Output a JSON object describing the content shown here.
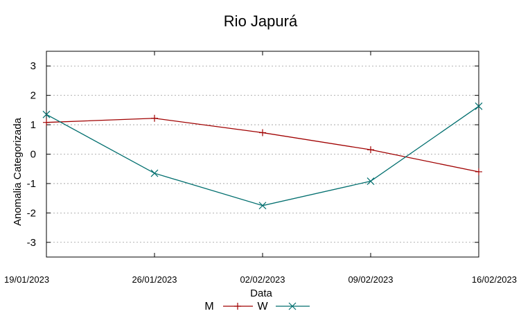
{
  "chart_data": {
    "type": "line",
    "title": "Rio Japurá",
    "xlabel": "Data",
    "ylabel": "Anomalia Categorizada",
    "categories": [
      "19/01/2023",
      "26/01/2023",
      "02/02/2023",
      "09/02/2023",
      "16/02/2023"
    ],
    "ylim": [
      -3.5,
      3.5
    ],
    "yticks": [
      "3",
      "2",
      "1",
      "0",
      "-1",
      "-2",
      "-3"
    ],
    "ytick_values": [
      3,
      2,
      1,
      0,
      -1,
      -2,
      -3
    ],
    "grid": true,
    "legend_position": "bottom-center",
    "series": [
      {
        "name": "M",
        "color": "#a00000",
        "marker": "plus",
        "values": [
          1.08,
          1.22,
          0.73,
          0.15,
          -0.6
        ]
      },
      {
        "name": "W",
        "color": "#006e6e",
        "marker": "cross",
        "values": [
          1.35,
          -0.65,
          -1.75,
          -0.92,
          1.63
        ]
      }
    ]
  }
}
